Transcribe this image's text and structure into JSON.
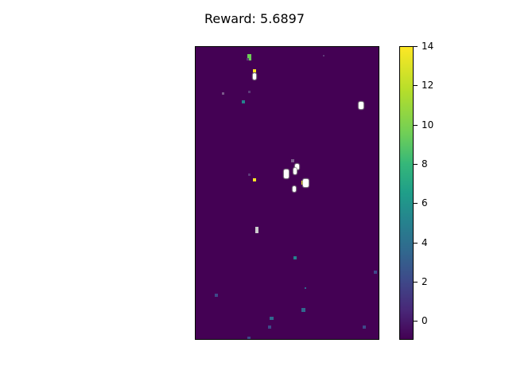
{
  "header": {
    "title": "Reward: 5.6897"
  },
  "colorbar": {
    "range": [
      -1,
      14
    ],
    "ticks": [
      "14",
      "12",
      "10",
      "8",
      "6",
      "4",
      "2",
      "0"
    ],
    "colormap": "viridis"
  },
  "grid_map": {
    "background_value": -1,
    "background_color": "#440154",
    "cells": [
      {
        "color": "#6ece58"
      },
      {
        "color": "#fde725"
      },
      {
        "color": "#ffffff"
      },
      {
        "color": "#5c3a78"
      },
      {
        "color": "#5c3a78"
      },
      {
        "color": "#26828e"
      },
      {
        "color": "#ffffff"
      },
      {
        "color": "#7a5a8a"
      },
      {
        "color": "#ffffff"
      },
      {
        "color": "#ffffff"
      },
      {
        "color": "#7a5a8a"
      },
      {
        "color": "#ffffff"
      },
      {
        "color": "#fde725"
      },
      {
        "color": "#ffffff"
      },
      {
        "color": "#5c3a78"
      },
      {
        "color": "#fde725"
      },
      {
        "color": "#ffffff"
      },
      {
        "color": "#cccccc"
      },
      {
        "color": "#26828e"
      },
      {
        "color": "#3e4989"
      },
      {
        "color": "#3e4989"
      },
      {
        "color": "#31688e"
      },
      {
        "color": "#31688e"
      },
      {
        "color": "#3e4989"
      },
      {
        "color": "#3e4989"
      },
      {
        "color": "#31688e"
      },
      {
        "color": "#3e4989"
      },
      {
        "color": "#5c3a78"
      }
    ]
  }
}
